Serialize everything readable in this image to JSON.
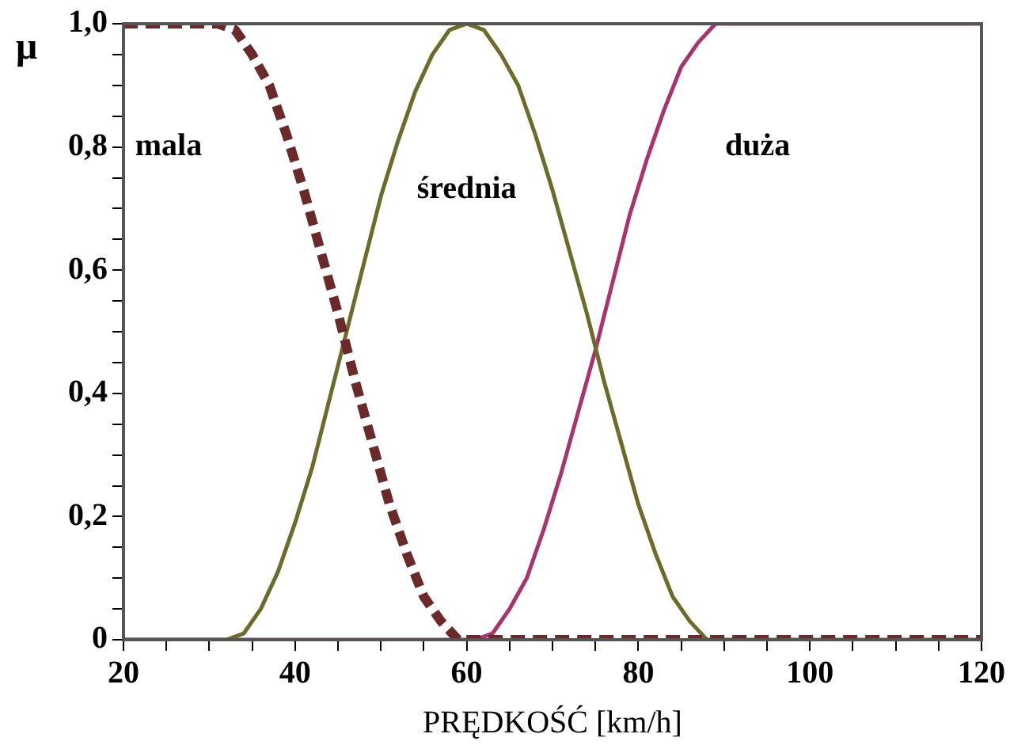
{
  "chart_data": {
    "type": "line",
    "xlabel": "PRĘDKOŚĆ [km/h]",
    "ylabel": "μ",
    "legend": false,
    "grid": false,
    "marker": "none",
    "xlim": [
      20,
      120
    ],
    "ylim": [
      0,
      1
    ],
    "xticks": [
      20,
      {
        "value": 25,
        "label": null
      },
      {
        "value": 30,
        "label": null
      },
      {
        "value": 35,
        "label": null
      },
      40,
      {
        "value": 45,
        "label": null
      },
      {
        "value": 50,
        "label": null
      },
      {
        "value": 55,
        "label": null
      },
      60,
      {
        "value": 65,
        "label": null
      },
      {
        "value": 70,
        "label": null
      },
      {
        "value": 75,
        "label": null
      },
      80,
      {
        "value": 85,
        "label": null
      },
      {
        "value": 90,
        "label": null
      },
      {
        "value": 95,
        "label": null
      },
      100,
      {
        "value": 105,
        "label": null
      },
      {
        "value": 110,
        "label": null
      },
      {
        "value": 115,
        "label": null
      },
      120
    ],
    "yticks": [
      0,
      {
        "value": 0.05,
        "label": null
      },
      {
        "value": 0.1,
        "label": null
      },
      {
        "value": 0.15,
        "label": null
      },
      {
        "value": 0.2,
        "label": "0,2"
      },
      {
        "value": 0.25,
        "label": null
      },
      {
        "value": 0.3,
        "label": null
      },
      {
        "value": 0.35,
        "label": null
      },
      {
        "value": 0.4,
        "label": "0,4"
      },
      {
        "value": 0.45,
        "label": null
      },
      {
        "value": 0.5,
        "label": null
      },
      {
        "value": 0.55,
        "label": null
      },
      {
        "value": 0.6,
        "label": "0,6"
      },
      {
        "value": 0.65,
        "label": null
      },
      {
        "value": 0.7,
        "label": null
      },
      {
        "value": 0.75,
        "label": null
      },
      {
        "value": 0.8,
        "label": "0,8"
      },
      {
        "value": 0.85,
        "label": null
      },
      {
        "value": 0.9,
        "label": null
      },
      {
        "value": 0.95,
        "label": null
      },
      {
        "value": 1,
        "label": "1,0"
      }
    ],
    "series": [
      {
        "name": "mala",
        "color": "#6b2a2a",
        "line_style": "dashed",
        "x": [
          20,
          31,
          33,
          35,
          37,
          39,
          41,
          43,
          45,
          47,
          49,
          51,
          53,
          55,
          57,
          59,
          60,
          120
        ],
        "values": [
          1,
          1,
          0.99,
          0.95,
          0.9,
          0.82,
          0.73,
          0.63,
          0.53,
          0.42,
          0.32,
          0.22,
          0.14,
          0.07,
          0.03,
          0,
          0,
          0
        ]
      },
      {
        "name": "średnia",
        "color": "#6b6b2a",
        "line_style": "solid",
        "x": [
          20,
          32,
          34,
          36,
          38,
          40,
          42,
          44,
          46,
          48,
          50,
          52,
          54,
          56,
          58,
          60,
          62,
          64,
          66,
          68,
          70,
          72,
          74,
          76,
          78,
          80,
          82,
          84,
          86,
          88,
          89,
          120
        ],
        "values": [
          0,
          0,
          0.01,
          0.05,
          0.11,
          0.19,
          0.28,
          0.39,
          0.5,
          0.61,
          0.72,
          0.81,
          0.89,
          0.95,
          0.99,
          1,
          0.99,
          0.95,
          0.9,
          0.82,
          0.73,
          0.63,
          0.53,
          0.42,
          0.32,
          0.22,
          0.14,
          0.07,
          0.03,
          0,
          0,
          0
        ]
      },
      {
        "name": "duża",
        "color": "#a8336e",
        "line_style": "solid",
        "x": [
          20,
          61,
          63,
          65,
          67,
          69,
          71,
          73,
          75,
          77,
          79,
          81,
          83,
          85,
          87,
          89,
          90,
          120
        ],
        "values": [
          0,
          0,
          0.01,
          0.05,
          0.1,
          0.18,
          0.27,
          0.37,
          0.47,
          0.58,
          0.69,
          0.78,
          0.86,
          0.93,
          0.97,
          1,
          1,
          1
        ]
      }
    ]
  }
}
